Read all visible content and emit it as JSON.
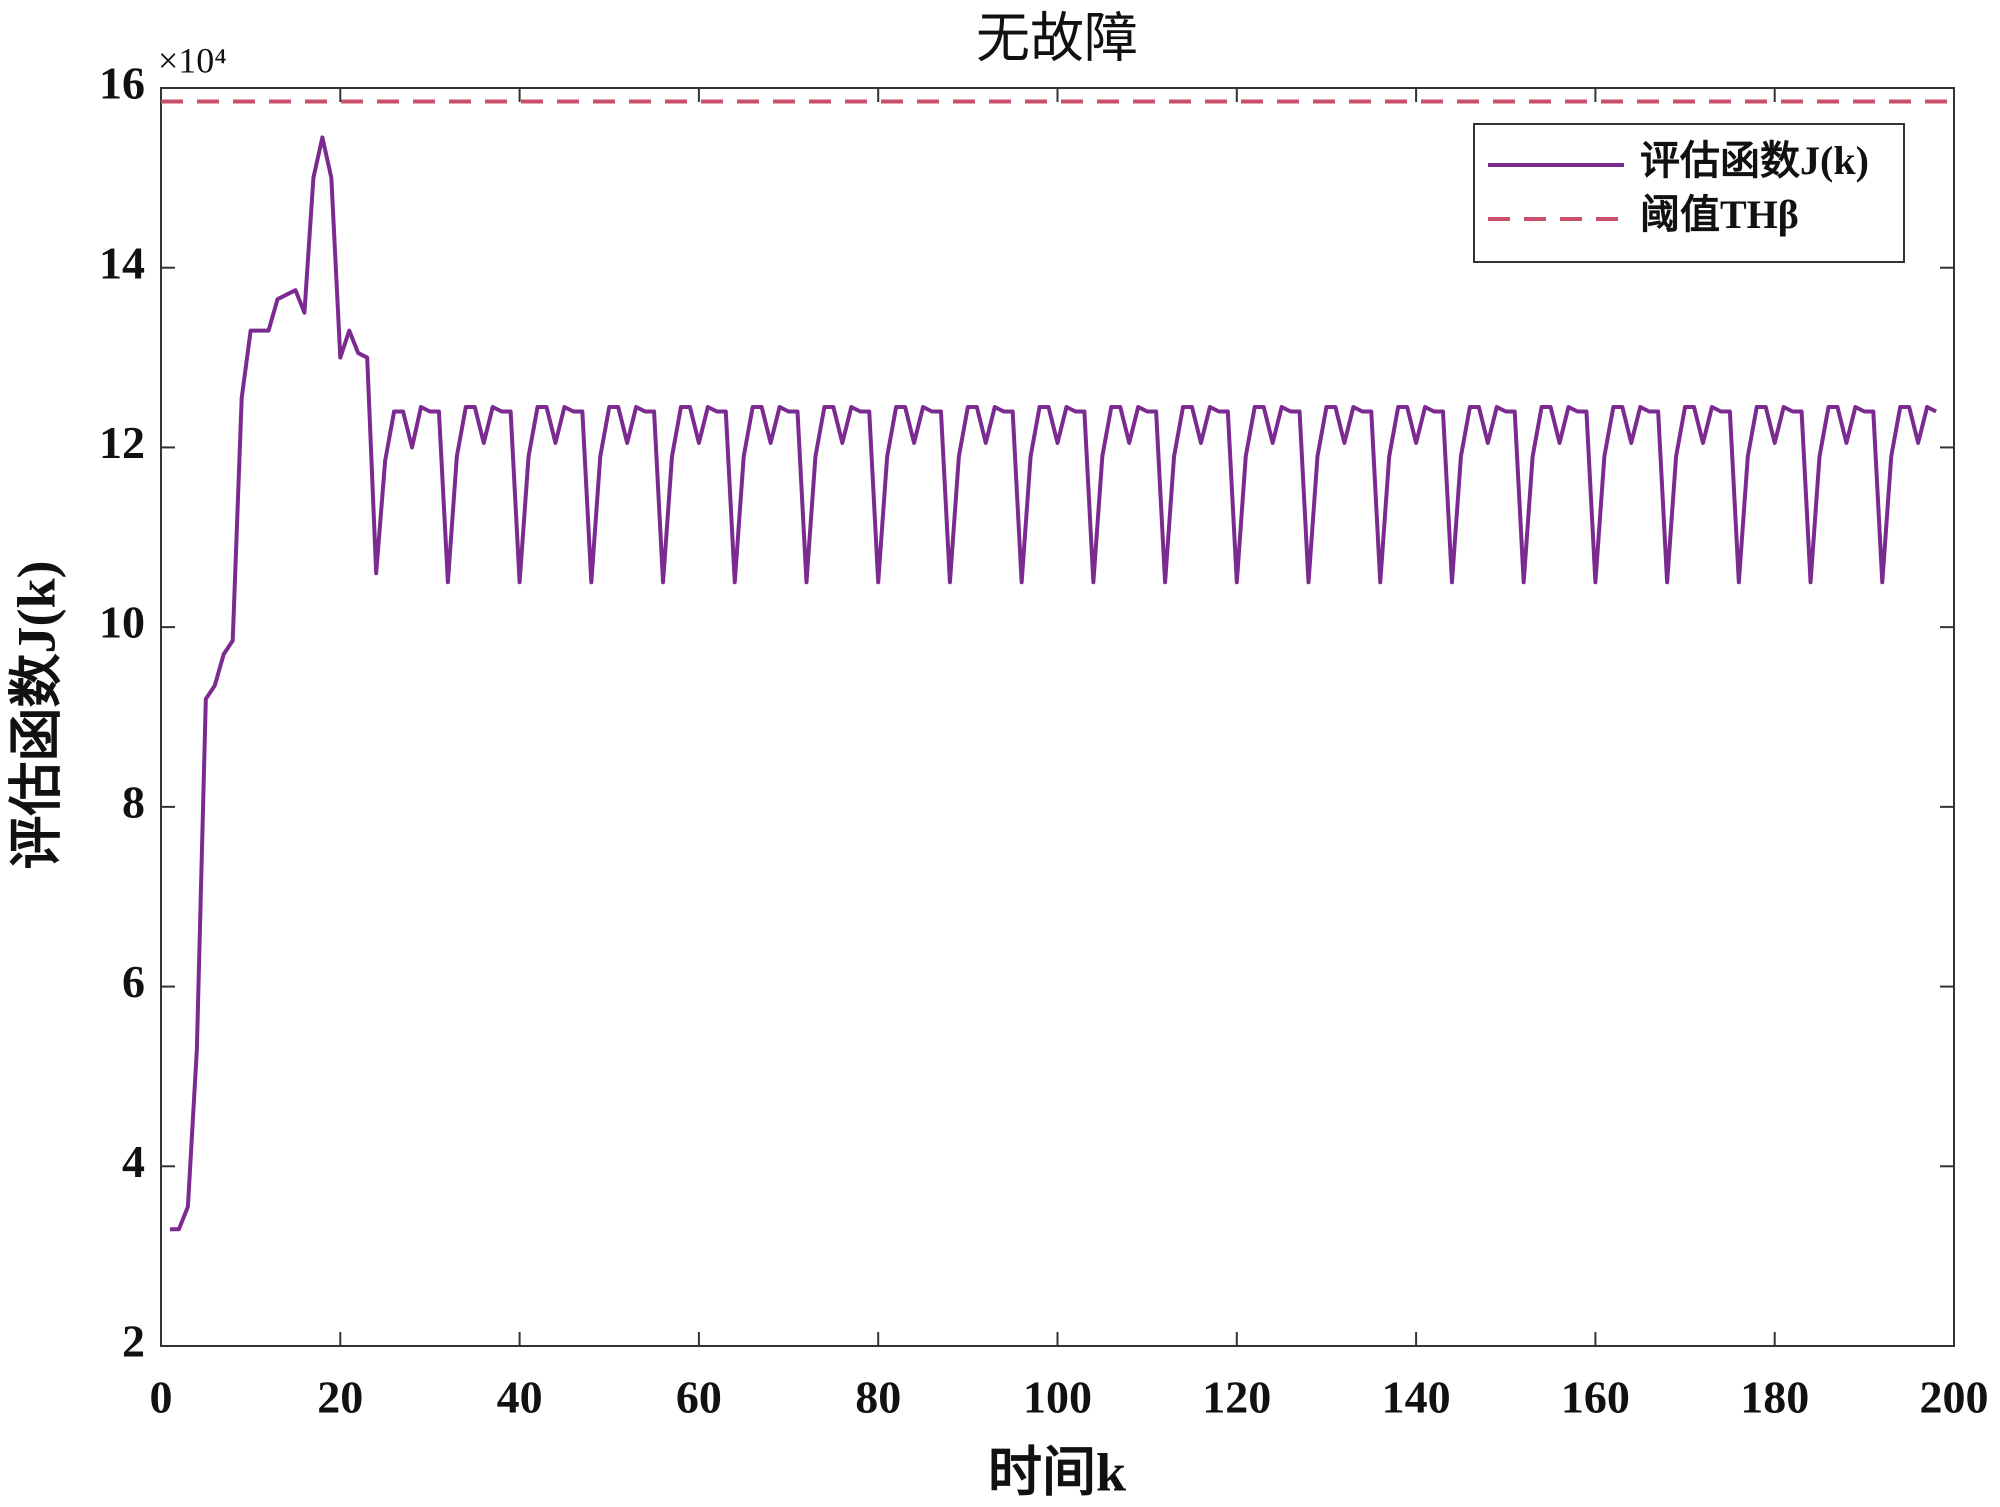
{
  "chart_data": {
    "type": "line",
    "title": "无故障",
    "x_label": "时间k",
    "y_label": "评估函数J(k)",
    "y_multiplier": "×10⁴",
    "xlim": [
      0,
      200
    ],
    "xticks": [
      0,
      20,
      40,
      60,
      80,
      100,
      120,
      140,
      160,
      180,
      200
    ],
    "ylim": [
      2,
      16
    ],
    "yticks": [
      2,
      4,
      6,
      8,
      10,
      12,
      14,
      16
    ],
    "grid": false,
    "legend": "upper right",
    "series": [
      {
        "name": "评估函数J(k)",
        "color": "#7b2a8f",
        "dash": "solid",
        "x": [
          1,
          2,
          3,
          4,
          5,
          6,
          7,
          8,
          9,
          10,
          11,
          12,
          13,
          14,
          15,
          16,
          17,
          18,
          19,
          20,
          21,
          22,
          23,
          24,
          25,
          26,
          27,
          28,
          29,
          30,
          31,
          32,
          33,
          34,
          35,
          36,
          37,
          38,
          39,
          40,
          41,
          42,
          43,
          44,
          45,
          46,
          47,
          48,
          49,
          50,
          51,
          52,
          53,
          54,
          55,
          56,
          57,
          58,
          59,
          60,
          61,
          62,
          63,
          64,
          65,
          66,
          67,
          68,
          69,
          70,
          71,
          72,
          73,
          74,
          75,
          76,
          77,
          78,
          79,
          80,
          81,
          82,
          83,
          84,
          85,
          86,
          87,
          88,
          89,
          90,
          91,
          92,
          93,
          94,
          95,
          96,
          97,
          98,
          99,
          100,
          101,
          102,
          103,
          104,
          105,
          106,
          107,
          108,
          109,
          110,
          111,
          112,
          113,
          114,
          115,
          116,
          117,
          118,
          119,
          120,
          121,
          122,
          123,
          124,
          125,
          126,
          127,
          128,
          129,
          130,
          131,
          132,
          133,
          134,
          135,
          136,
          137,
          138,
          139,
          140,
          141,
          142,
          143,
          144,
          145,
          146,
          147,
          148,
          149,
          150,
          151,
          152,
          153,
          154,
          155,
          156,
          157,
          158,
          159,
          160,
          161,
          162,
          163,
          164,
          165,
          166,
          167,
          168,
          169,
          170,
          171,
          172,
          173,
          174,
          175,
          176,
          177,
          178,
          179,
          180,
          181,
          182,
          183,
          184,
          185,
          186,
          187,
          188,
          189,
          190,
          191,
          192,
          193,
          194,
          195,
          196,
          197,
          198
        ],
        "values": [
          3.3,
          3.3,
          3.55,
          5.3,
          9.2,
          9.35,
          9.7,
          9.85,
          12.55,
          13.3,
          13.3,
          13.3,
          13.65,
          13.7,
          13.75,
          13.5,
          15.0,
          15.45,
          15.0,
          13.0,
          13.3,
          13.05,
          13.0,
          10.6,
          11.85,
          12.4,
          12.4,
          12.0,
          12.45,
          12.4,
          12.4,
          10.5,
          11.9,
          12.45,
          12.45,
          12.05,
          12.45,
          12.4,
          12.4,
          10.5,
          11.9,
          12.45,
          12.45,
          12.05,
          12.45,
          12.4,
          12.4,
          10.5,
          11.9,
          12.45,
          12.45,
          12.05,
          12.45,
          12.4,
          12.4,
          10.5,
          11.9,
          12.45,
          12.45,
          12.05,
          12.45,
          12.4,
          12.4,
          10.5,
          11.9,
          12.45,
          12.45,
          12.05,
          12.45,
          12.4,
          12.4,
          10.5,
          11.9,
          12.45,
          12.45,
          12.05,
          12.45,
          12.4,
          12.4,
          10.5,
          11.9,
          12.45,
          12.45,
          12.05,
          12.45,
          12.4,
          12.4,
          10.5,
          11.9,
          12.45,
          12.45,
          12.05,
          12.45,
          12.4,
          12.4,
          10.5,
          11.9,
          12.45,
          12.45,
          12.05,
          12.45,
          12.4,
          12.4,
          10.5,
          11.9,
          12.45,
          12.45,
          12.05,
          12.45,
          12.4,
          12.4,
          10.5,
          11.9,
          12.45,
          12.45,
          12.05,
          12.45,
          12.4,
          12.4,
          10.5,
          11.9,
          12.45,
          12.45,
          12.05,
          12.45,
          12.4,
          12.4,
          10.5,
          11.9,
          12.45,
          12.45,
          12.05,
          12.45,
          12.4,
          12.4,
          10.5,
          11.9,
          12.45,
          12.45,
          12.05,
          12.45,
          12.4,
          12.4,
          10.5,
          11.9,
          12.45,
          12.45,
          12.05,
          12.45,
          12.4,
          12.4,
          10.5,
          11.9,
          12.45,
          12.45,
          12.05,
          12.45,
          12.4,
          12.4,
          10.5,
          11.9,
          12.45,
          12.45,
          12.05,
          12.45,
          12.4,
          12.4,
          10.5,
          11.9,
          12.45,
          12.45,
          12.05,
          12.45,
          12.4,
          12.4,
          10.5,
          11.9,
          12.45,
          12.45,
          12.05,
          12.45,
          12.4,
          12.4,
          10.5,
          11.9,
          12.45,
          12.45,
          12.05,
          12.45,
          12.4,
          12.4,
          10.5,
          11.9,
          12.45,
          12.45,
          12.05,
          12.45,
          12.4
        ]
      },
      {
        "name": "阈值THβ",
        "color": "#c8506a",
        "dash": "dashed",
        "x": [
          0,
          200
        ],
        "values": [
          15.85,
          15.85
        ]
      }
    ]
  }
}
